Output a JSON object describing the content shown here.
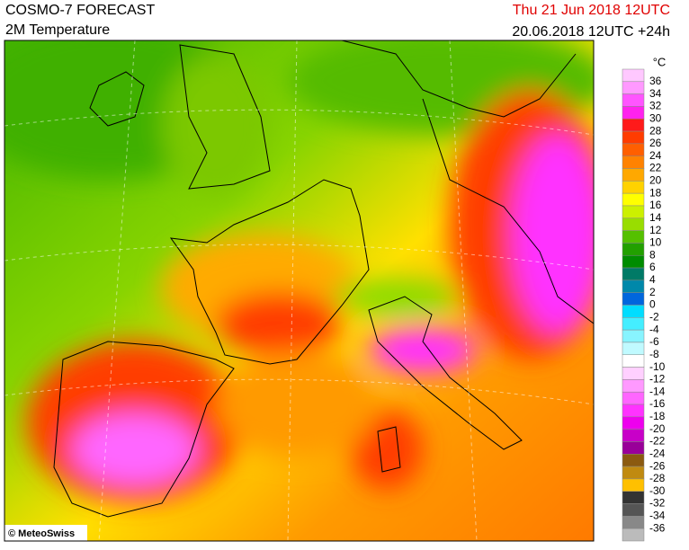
{
  "header": {
    "title": "COSMO-7 FORECAST",
    "subtitle": "2M Temperature",
    "valid_time": "Thu 21 Jun 2018 12UTC",
    "run": "20.06.2018 12UTC +24h"
  },
  "credit": "© MeteoSwiss",
  "legend": {
    "unit": "°C",
    "levels": [
      36,
      34,
      32,
      30,
      28,
      26,
      24,
      22,
      20,
      18,
      16,
      14,
      12,
      10,
      8,
      6,
      4,
      2,
      0,
      -2,
      -4,
      -6,
      -8,
      -10,
      -12,
      -14,
      -16,
      -18,
      -20,
      -22,
      -24,
      -26,
      -28,
      -30,
      -32,
      -34,
      -36
    ],
    "colors": [
      "#ffc8ff",
      "#ff99ff",
      "#ff55ff",
      "#ff22ee",
      "#ff1a1a",
      "#ff3c00",
      "#ff5f00",
      "#ff8200",
      "#ffa800",
      "#ffd200",
      "#ffff00",
      "#ccf000",
      "#99dd00",
      "#55c000",
      "#22a000",
      "#008c00",
      "#007a66",
      "#0088aa",
      "#0066dd",
      "#00ddff",
      "#44eeff",
      "#88f4ff",
      "#c0faff",
      "#ffffff",
      "#ffd0ff",
      "#ff99ff",
      "#ff66ff",
      "#ff33ff",
      "#ee00ee",
      "#c800c8",
      "#990099",
      "#8b5a10",
      "#c08a10",
      "#ffc000",
      "#333333",
      "#555555",
      "#888888",
      "#bbbbbb"
    ]
  }
}
